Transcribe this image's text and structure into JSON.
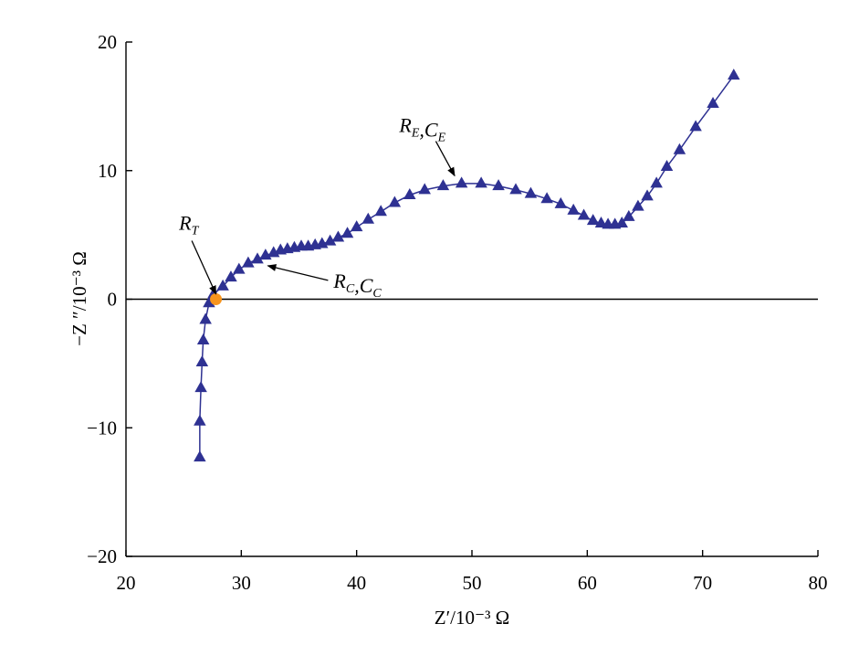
{
  "chart_data": {
    "type": "scatter",
    "xlabel": "Z′/10⁻³ Ω",
    "ylabel": "−Z ″/10⁻³ Ω",
    "xlim": [
      20,
      80
    ],
    "ylim": [
      -20,
      20
    ],
    "xticks": [
      "20",
      "30",
      "40",
      "50",
      "60",
      "70",
      "80"
    ],
    "yticks": [
      "20",
      "10",
      "0",
      "−10",
      "−20"
    ],
    "grid": false,
    "series": [
      {
        "color": "#2e3192",
        "marker": "triangle",
        "x": [
          26.4,
          26.4,
          26.5,
          26.6,
          26.7,
          26.9,
          27.2,
          27.6,
          28.4,
          29.1,
          29.8,
          30.6,
          31.4,
          32.1,
          32.8,
          33.4,
          34.0,
          34.6,
          35.2,
          35.8,
          36.4,
          37.0,
          37.7,
          38.4,
          39.2,
          40.0,
          41.0,
          42.1,
          43.3,
          44.6,
          45.9,
          47.5,
          49.1,
          50.8,
          52.3,
          53.8,
          55.1,
          56.5,
          57.7,
          58.8,
          59.7,
          60.5,
          61.2,
          61.8,
          62.4,
          63.0,
          63.6,
          64.4,
          65.2,
          66.0,
          66.9,
          68.0,
          69.4,
          70.9,
          72.7
        ],
        "y": [
          -12.3,
          -9.5,
          -6.9,
          -4.9,
          -3.2,
          -1.6,
          -0.3,
          0.4,
          1.0,
          1.7,
          2.3,
          2.8,
          3.1,
          3.4,
          3.6,
          3.8,
          3.9,
          4.0,
          4.1,
          4.1,
          4.2,
          4.3,
          4.5,
          4.8,
          5.1,
          5.6,
          6.2,
          6.8,
          7.5,
          8.1,
          8.5,
          8.8,
          9.0,
          9.0,
          8.8,
          8.5,
          8.2,
          7.8,
          7.4,
          6.9,
          6.5,
          6.1,
          5.9,
          5.8,
          5.8,
          5.9,
          6.4,
          7.2,
          8.0,
          9.0,
          10.3,
          11.6,
          13.4,
          15.2,
          17.4
        ]
      },
      {
        "color": "#f7941d",
        "marker": "circle",
        "x": [
          27.8
        ],
        "y": [
          0.0
        ]
      }
    ],
    "annotations": [
      {
        "label": "R_T",
        "text_x": 24.6,
        "text_y": 5.4,
        "arrow_to_x": 27.8,
        "arrow_to_y": 0.4
      },
      {
        "label": "R_C,C_C",
        "text_x": 38.0,
        "text_y": 0.9,
        "arrow_to_x": 32.3,
        "arrow_to_y": 2.6
      },
      {
        "label": "R_E,C_E",
        "text_x": 43.7,
        "text_y": 13.0,
        "arrow_to_x": 48.5,
        "arrow_to_y": 9.6
      }
    ]
  }
}
